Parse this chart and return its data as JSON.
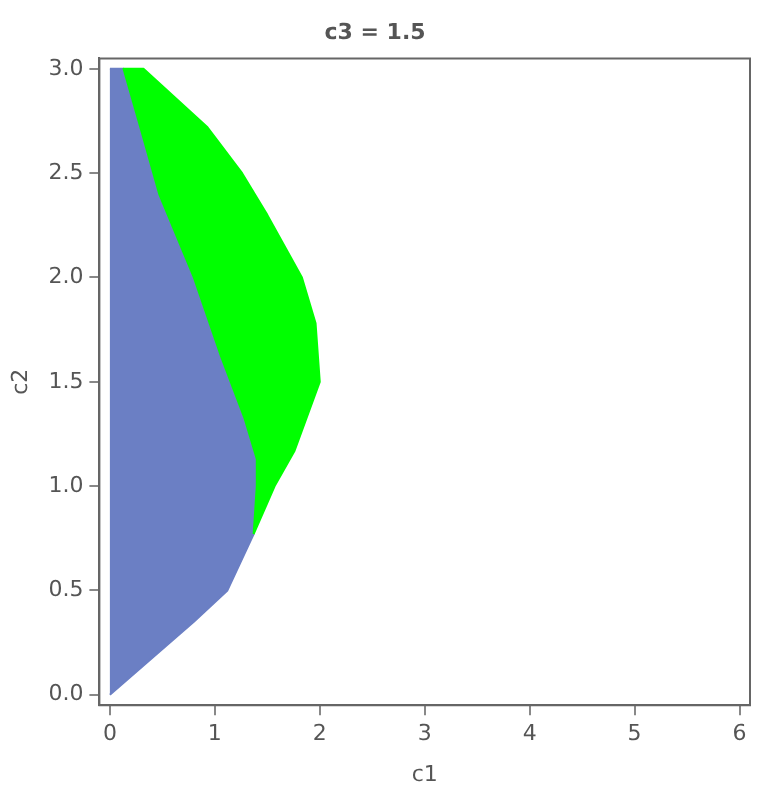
{
  "chart_data": {
    "type": "area",
    "title": "c3 = 1.5",
    "xlabel": "c1",
    "ylabel": "c2",
    "xlim": [
      -0.1,
      6.1
    ],
    "ylim": [
      -0.05,
      3.05
    ],
    "xticks": [
      0,
      1,
      2,
      3,
      4,
      5,
      6
    ],
    "yticks": [
      {
        "value": 0,
        "label": "0.0"
      },
      {
        "value": 0.5,
        "label": "0.5"
      },
      {
        "value": 1,
        "label": "1.0"
      },
      {
        "value": 1.5,
        "label": "1.5"
      },
      {
        "value": 2,
        "label": "2.0"
      },
      {
        "value": 2.5,
        "label": "2.5"
      },
      {
        "value": 3,
        "label": "3.0"
      }
    ],
    "grid": false,
    "legend": false,
    "series": [
      {
        "color": "#00ff00",
        "x": [
          1.37,
          1.57,
          1.76,
          2.0,
          1.96,
          1.83,
          1.5,
          1.26,
          0.93,
          0.32,
          0.13,
          0.29,
          0.47,
          0.8,
          1.06,
          1.28,
          1.4,
          1.4,
          1.37
        ],
        "values": [
          0.77,
          1.0,
          1.17,
          1.5,
          1.78,
          2.0,
          2.3,
          2.5,
          2.72,
          3.0,
          3.0,
          2.72,
          2.4,
          2.0,
          1.62,
          1.33,
          1.13,
          1.0,
          0.77
        ]
      },
      {
        "color": "#6b7fc4",
        "x": [
          0,
          0.8,
          1.12,
          1.37,
          1.4,
          1.4,
          1.28,
          1.06,
          0.8,
          0.47,
          0.29,
          0.13,
          0
        ],
        "values": [
          0,
          0.35,
          0.5,
          0.77,
          1.0,
          1.13,
          1.33,
          1.62,
          2.0,
          2.4,
          2.72,
          3.0,
          3.0
        ]
      }
    ]
  }
}
